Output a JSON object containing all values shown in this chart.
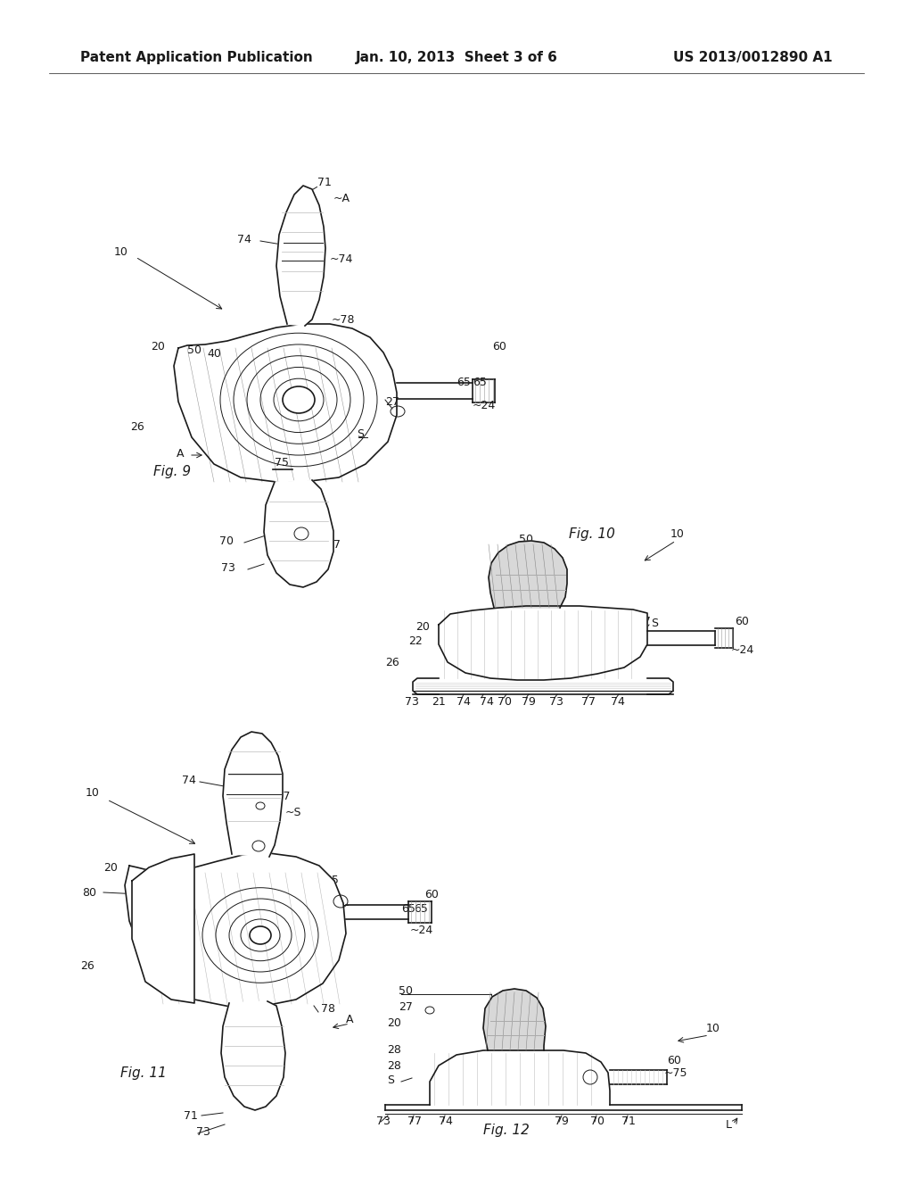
{
  "bg_color": "#ffffff",
  "title_left": "Patent Application Publication",
  "title_center": "Jan. 10, 2013  Sheet 3 of 6",
  "title_right": "US 2013/0012890 A1",
  "title_fontsize": 11,
  "fig9_label": "Fig. 9",
  "fig10_label": "Fig. 10",
  "fig11_label": "Fig. 11",
  "fig12_label": "Fig. 12",
  "line_color": "#1a1a1a",
  "line_width": 1.2,
  "thin_line": 0.7,
  "label_fontsize": 9,
  "figlabel_fontsize": 11
}
